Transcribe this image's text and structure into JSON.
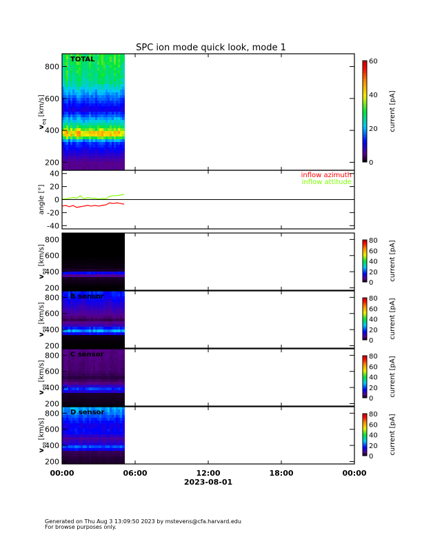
{
  "chart_data": {
    "title": "SPC ion mode quick look, mode 1",
    "x_tick_labels": [
      "00:00",
      "06:00",
      "12:00",
      "18:00",
      "00:00"
    ],
    "x_label": "2023-08-01",
    "xlim_hours": [
      0,
      24
    ],
    "data_end_hours": 5.15,
    "panels": [
      {
        "type": "heatmap",
        "label": "TOTAL",
        "ylabel": "v_eq [km/s]",
        "ylabel_main": "v",
        "ylabel_sub": "eq",
        "ylabel_unit": "[km/s]",
        "ylim": [
          150,
          880
        ],
        "yticks": [
          200,
          400,
          600,
          800
        ],
        "colorbar": {
          "label": "current [pA]",
          "range": [
            0,
            60
          ],
          "ticks": [
            0,
            20,
            40,
            60
          ]
        },
        "profile": {
          "v": [
            200,
            330,
            350,
            380,
            410,
            440,
            480,
            530,
            600,
            700,
            850
          ],
          "current": [
            5,
            15,
            30,
            46,
            32,
            25,
            18,
            10,
            16,
            26,
            30
          ]
        }
      },
      {
        "type": "line",
        "ylabel": "angle [°]",
        "ylim": [
          -45,
          45
        ],
        "yticks": [
          -40,
          -20,
          0,
          20,
          40
        ],
        "zero_line": true,
        "legend": "top-right",
        "x": [
          0,
          0.3,
          0.6,
          0.9,
          1.2,
          1.5,
          1.8,
          2.1,
          2.4,
          2.7,
          3.0,
          3.3,
          3.6,
          3.9,
          4.2,
          4.5,
          4.8,
          5.1
        ],
        "series": [
          {
            "name": "inflow azimuth",
            "color": "#ff0000",
            "values": [
              -10,
              -9,
              -11,
              -9,
              -12,
              -11,
              -10,
              -9,
              -10,
              -9,
              -10,
              -9,
              -8,
              -5,
              -6,
              -5,
              -6,
              -7
            ]
          },
          {
            "name": "inflow attitude",
            "color": "#7fff00",
            "values": [
              1,
              1,
              2,
              3,
              2,
              6,
              1,
              3,
              2,
              2,
              1,
              2,
              1,
              5,
              6,
              6,
              7,
              8
            ]
          }
        ]
      },
      {
        "type": "heatmap",
        "label": "",
        "ylabel_main": "v",
        "ylabel_sub": "eq",
        "ylabel_unit": "[km/s]",
        "ylim": [
          170,
          880
        ],
        "yticks": [
          200,
          400,
          600,
          800
        ],
        "colorbar": {
          "label": "current [pA]",
          "range": [
            0,
            80
          ],
          "ticks": [
            0,
            20,
            40,
            60,
            80
          ]
        },
        "profile": {
          "v": [
            200,
            340,
            370,
            390,
            420,
            600,
            850
          ],
          "current": [
            0,
            2,
            18,
            14,
            1,
            0,
            0
          ]
        }
      },
      {
        "type": "heatmap",
        "label": "B sensor",
        "ylabel_main": "v",
        "ylabel_sub": "eq",
        "ylabel_unit": "[km/s]",
        "ylim": [
          170,
          880
        ],
        "yticks": [
          200,
          400,
          600,
          800
        ],
        "colorbar": {
          "label": "current [pA]",
          "range": [
            0,
            80
          ],
          "ticks": [
            0,
            20,
            40,
            60,
            80
          ]
        },
        "profile": {
          "v": [
            200,
            330,
            370,
            400,
            450,
            520,
            600,
            700,
            850
          ],
          "current": [
            0,
            1,
            30,
            22,
            10,
            4,
            8,
            12,
            18
          ]
        }
      },
      {
        "type": "heatmap",
        "label": "C sensor",
        "ylabel_main": "v",
        "ylabel_sub": "eq",
        "ylabel_unit": "[km/s]",
        "ylim": [
          170,
          880
        ],
        "yticks": [
          200,
          400,
          600,
          800
        ],
        "colorbar": {
          "label": "current [pA]",
          "range": [
            0,
            80
          ],
          "ticks": [
            0,
            20,
            40,
            60,
            80
          ]
        },
        "profile": {
          "v": [
            200,
            330,
            370,
            400,
            450,
            520,
            600,
            850
          ],
          "current": [
            1,
            2,
            24,
            14,
            6,
            3,
            5,
            6
          ]
        }
      },
      {
        "type": "heatmap",
        "label": "D sensor",
        "ylabel_main": "v",
        "ylabel_sub": "eq",
        "ylabel_unit": "[km/s]",
        "ylim": [
          170,
          880
        ],
        "yticks": [
          200,
          400,
          600,
          800
        ],
        "colorbar": {
          "label": "current [pA]",
          "range": [
            0,
            80
          ],
          "ticks": [
            0,
            20,
            40,
            60,
            80
          ]
        },
        "profile": {
          "v": [
            200,
            330,
            370,
            400,
            480,
            560,
            650,
            850
          ],
          "current": [
            2,
            4,
            26,
            14,
            8,
            16,
            14,
            26
          ]
        }
      }
    ]
  },
  "footer": {
    "line1": "Generated on Thu Aug  3 13:09:50 2023 by mstevens@cfa.harvard.edu",
    "line2": "For browse purposes only."
  }
}
